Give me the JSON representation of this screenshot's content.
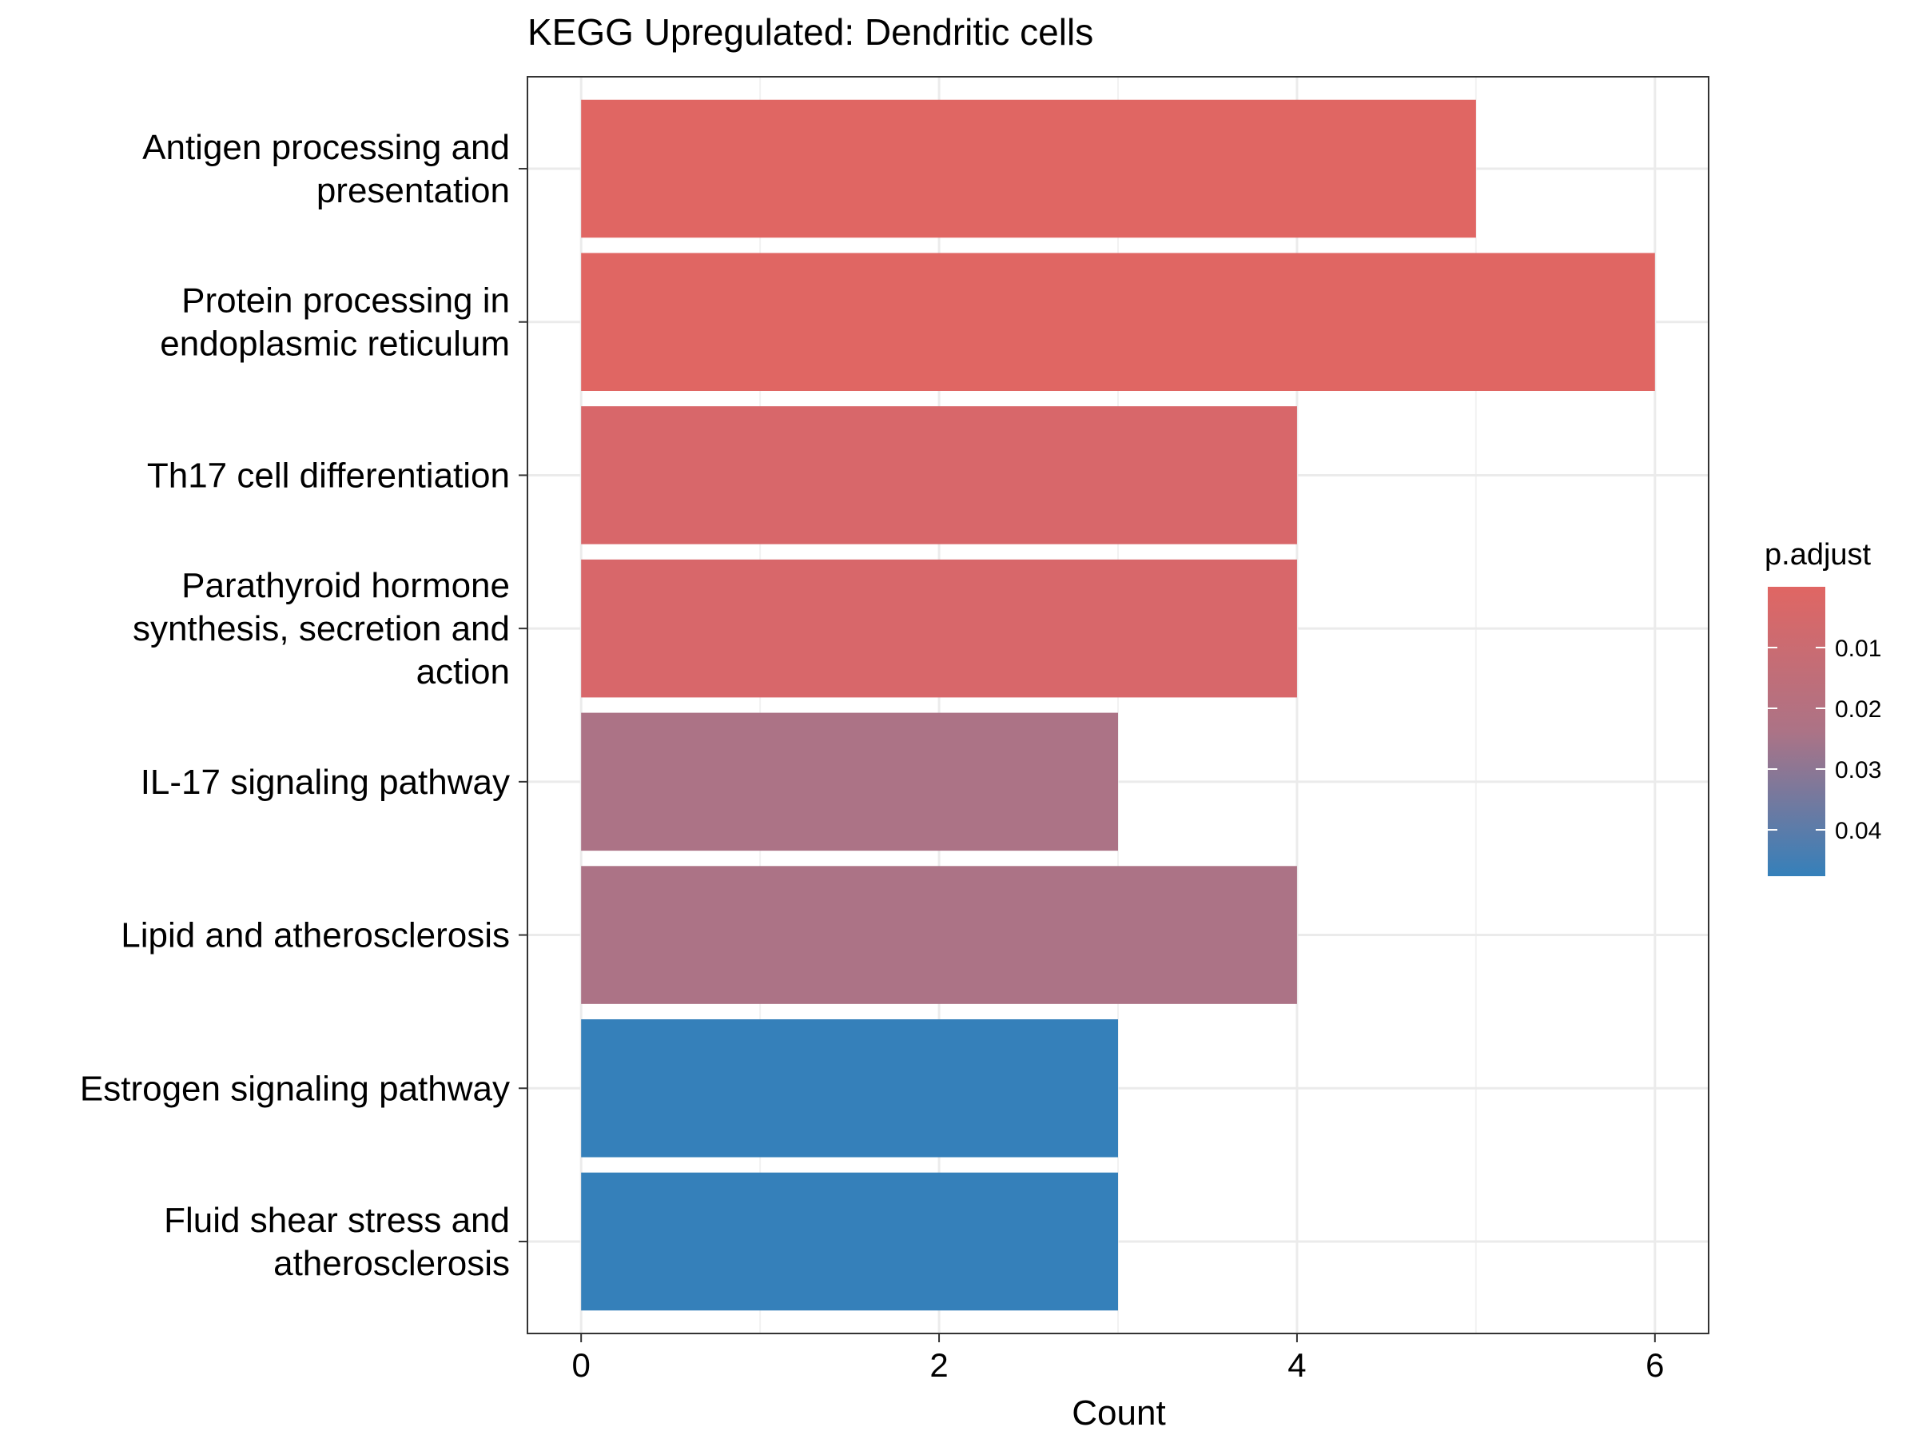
{
  "chart_data": {
    "type": "bar",
    "orientation": "horizontal",
    "title": "KEGG Upregulated: Dendritic cells",
    "xlabel": "Count",
    "ylabel": "",
    "xlim": [
      -0.3,
      6.3
    ],
    "x_ticks": [
      0,
      2,
      4,
      6
    ],
    "grid": true,
    "categories": [
      "Antigen processing and presentation",
      "Protein processing in endoplasmic reticulum",
      "Th17 cell differentiation",
      "Parathyroid hormone synthesis, secretion and action",
      "IL-17 signaling pathway",
      "Lipid and atherosclerosis",
      "Estrogen signaling pathway",
      "Fluid shear stress and atherosclerosis"
    ],
    "category_lines": [
      [
        "Antigen processing and",
        "presentation"
      ],
      [
        "Protein processing in",
        "endoplasmic reticulum"
      ],
      [
        "Th17 cell differentiation"
      ],
      [
        "Parathyroid hormone",
        "synthesis, secretion and",
        "action"
      ],
      [
        "IL-17 signaling pathway"
      ],
      [
        "Lipid and atherosclerosis"
      ],
      [
        "Estrogen signaling pathway"
      ],
      [
        "Fluid shear stress and",
        "atherosclerosis"
      ]
    ],
    "values": [
      5,
      6,
      4,
      4,
      3,
      4,
      3,
      3
    ],
    "bar_colors": [
      "#E06663",
      "#E06663",
      "#D8676A",
      "#D8676A",
      "#AC7386",
      "#AC7386",
      "#3580BA",
      "#3580BA"
    ],
    "legend": {
      "title": "p.adjust",
      "position": "right",
      "labels": [
        "0.01",
        "0.02",
        "0.03",
        "0.04"
      ],
      "color_high": "#E06663",
      "color_mid": "#AC7386",
      "color_low": "#3580BA"
    }
  }
}
